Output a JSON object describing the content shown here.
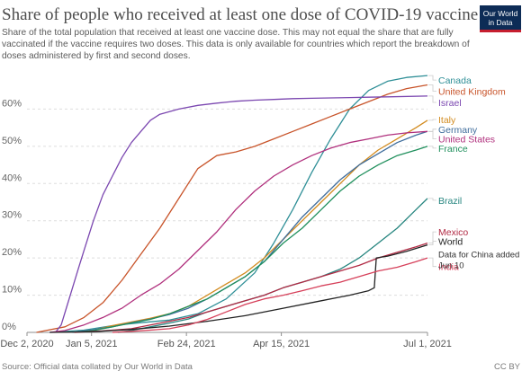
{
  "title": "Share of people who received at least one dose of COVID-19 vaccine",
  "subtitle": "Share of the total population that received at least one vaccine dose. This may not equal the share that are fully vaccinated if the vaccine requires two doses. This data is only available for countries which report the breakdown of doses administered by first and second doses.",
  "logo": {
    "line1": "Our World",
    "line2": "in Data"
  },
  "source": "Source: Official data collated by Our World in Data",
  "license": "CC BY",
  "chart_data": {
    "type": "line",
    "title": "Share of people who received at least one dose of COVID-19 vaccine",
    "xlabel": "",
    "ylabel": "",
    "x_ticks": [
      {
        "value": 0,
        "label": "Dec 2, 2020"
      },
      {
        "value": 34,
        "label": "Jan 5, 2021"
      },
      {
        "value": 84,
        "label": "Feb 24, 2021"
      },
      {
        "value": 134,
        "label": "Apr 15, 2021"
      },
      {
        "value": 211,
        "label": "Jul 1, 2021"
      }
    ],
    "y_ticks": [
      {
        "value": 0,
        "label": "0%"
      },
      {
        "value": 10,
        "label": "10%"
      },
      {
        "value": 20,
        "label": "20%"
      },
      {
        "value": 30,
        "label": "30%"
      },
      {
        "value": 40,
        "label": "40%"
      },
      {
        "value": 50,
        "label": "50%"
      },
      {
        "value": 60,
        "label": "60%"
      }
    ],
    "xlim": [
      0,
      211
    ],
    "ylim": [
      0,
      70
    ],
    "grid": "horizontal",
    "series": [
      {
        "name": "Canada",
        "color": "#2f8f97",
        "label_y": 67.8,
        "points": [
          [
            12,
            0
          ],
          [
            30,
            0.6
          ],
          [
            45,
            1.8
          ],
          [
            60,
            2.6
          ],
          [
            75,
            3.3
          ],
          [
            90,
            5
          ],
          [
            105,
            9
          ],
          [
            120,
            16
          ],
          [
            130,
            24
          ],
          [
            140,
            33
          ],
          [
            150,
            43
          ],
          [
            160,
            52
          ],
          [
            170,
            60
          ],
          [
            180,
            65
          ],
          [
            190,
            67.5
          ],
          [
            200,
            68.5
          ],
          [
            211,
            69
          ]
        ]
      },
      {
        "name": "United Kingdom",
        "color": "#c8542a",
        "label_y": 64.8,
        "points": [
          [
            5,
            0
          ],
          [
            20,
            1.5
          ],
          [
            30,
            4
          ],
          [
            40,
            8
          ],
          [
            50,
            14
          ],
          [
            60,
            21
          ],
          [
            70,
            28
          ],
          [
            80,
            36
          ],
          [
            90,
            44
          ],
          [
            100,
            47.5
          ],
          [
            110,
            48.5
          ],
          [
            120,
            50
          ],
          [
            130,
            52
          ],
          [
            140,
            54
          ],
          [
            150,
            56
          ],
          [
            160,
            58
          ],
          [
            170,
            60
          ],
          [
            180,
            62
          ],
          [
            190,
            64
          ],
          [
            200,
            65.5
          ],
          [
            211,
            66.5
          ]
        ]
      },
      {
        "name": "Israel",
        "color": "#7b47b0",
        "label_y": 61.8,
        "points": [
          [
            15,
            0
          ],
          [
            18,
            2
          ],
          [
            21,
            7
          ],
          [
            24,
            12
          ],
          [
            27,
            17
          ],
          [
            30,
            22
          ],
          [
            35,
            30
          ],
          [
            40,
            37
          ],
          [
            45,
            42
          ],
          [
            50,
            47
          ],
          [
            55,
            51
          ],
          [
            60,
            54
          ],
          [
            65,
            57
          ],
          [
            70,
            58.6
          ],
          [
            80,
            60
          ],
          [
            90,
            61
          ],
          [
            100,
            61.6
          ],
          [
            110,
            62.1
          ],
          [
            120,
            62.4
          ],
          [
            130,
            62.6
          ],
          [
            140,
            62.8
          ],
          [
            150,
            62.9
          ],
          [
            160,
            63
          ],
          [
            170,
            63.1
          ],
          [
            180,
            63.2
          ],
          [
            190,
            63.3
          ],
          [
            211,
            63.5
          ]
        ]
      },
      {
        "name": "Italy",
        "color": "#d28b1f",
        "label_y": 57.2,
        "points": [
          [
            25,
            0
          ],
          [
            35,
            0.6
          ],
          [
            45,
            1.8
          ],
          [
            55,
            2.8
          ],
          [
            65,
            3.8
          ],
          [
            75,
            5
          ],
          [
            85,
            7
          ],
          [
            95,
            10
          ],
          [
            105,
            13
          ],
          [
            115,
            16
          ],
          [
            125,
            20
          ],
          [
            135,
            25
          ],
          [
            145,
            30
          ],
          [
            155,
            35
          ],
          [
            165,
            40
          ],
          [
            175,
            45
          ],
          [
            185,
            49
          ],
          [
            195,
            52
          ],
          [
            205,
            55
          ],
          [
            211,
            57
          ]
        ]
      },
      {
        "name": "Germany",
        "color": "#3f6d9c",
        "label_y": 54.6,
        "points": [
          [
            24,
            0
          ],
          [
            35,
            0.7
          ],
          [
            45,
            1.5
          ],
          [
            55,
            2.6
          ],
          [
            65,
            3.6
          ],
          [
            75,
            4.8
          ],
          [
            85,
            6.5
          ],
          [
            95,
            9
          ],
          [
            105,
            12
          ],
          [
            115,
            15
          ],
          [
            125,
            19
          ],
          [
            135,
            25
          ],
          [
            145,
            31
          ],
          [
            155,
            36
          ],
          [
            165,
            41
          ],
          [
            175,
            45
          ],
          [
            185,
            48
          ],
          [
            195,
            51
          ],
          [
            205,
            53
          ],
          [
            211,
            54
          ]
        ]
      },
      {
        "name": "United States",
        "color": "#b0307d",
        "label_y": 52.0,
        "points": [
          [
            12,
            0
          ],
          [
            20,
            0.5
          ],
          [
            30,
            2
          ],
          [
            40,
            4
          ],
          [
            50,
            6.5
          ],
          [
            60,
            10
          ],
          [
            70,
            13
          ],
          [
            80,
            17
          ],
          [
            90,
            22
          ],
          [
            100,
            27
          ],
          [
            110,
            33
          ],
          [
            120,
            38
          ],
          [
            130,
            42
          ],
          [
            140,
            45
          ],
          [
            150,
            47.5
          ],
          [
            160,
            49.5
          ],
          [
            170,
            51
          ],
          [
            180,
            52
          ],
          [
            190,
            53
          ],
          [
            200,
            53.6
          ],
          [
            211,
            54
          ]
        ]
      },
      {
        "name": "France",
        "color": "#1f8f5c",
        "label_y": 49.5,
        "points": [
          [
            26,
            0
          ],
          [
            35,
            0.5
          ],
          [
            45,
            1.5
          ],
          [
            55,
            2.5
          ],
          [
            65,
            3.5
          ],
          [
            75,
            5
          ],
          [
            85,
            7
          ],
          [
            95,
            9
          ],
          [
            105,
            12
          ],
          [
            115,
            15
          ],
          [
            125,
            19
          ],
          [
            135,
            24
          ],
          [
            145,
            28
          ],
          [
            155,
            33
          ],
          [
            165,
            38
          ],
          [
            175,
            42
          ],
          [
            185,
            45
          ],
          [
            195,
            47.5
          ],
          [
            205,
            49
          ],
          [
            211,
            50
          ]
        ]
      },
      {
        "name": "Brazil",
        "color": "#26857f",
        "label_y": 35.5,
        "points": [
          [
            48,
            0
          ],
          [
            55,
            0.5
          ],
          [
            65,
            1.5
          ],
          [
            75,
            2.5
          ],
          [
            85,
            3.6
          ],
          [
            95,
            5.5
          ],
          [
            105,
            7
          ],
          [
            115,
            8.5
          ],
          [
            125,
            10
          ],
          [
            135,
            12
          ],
          [
            145,
            13.5
          ],
          [
            155,
            15
          ],
          [
            165,
            17
          ],
          [
            175,
            20
          ],
          [
            185,
            24
          ],
          [
            195,
            28
          ],
          [
            205,
            33
          ],
          [
            211,
            36
          ]
        ]
      },
      {
        "name": "Mexico",
        "color": "#b12a44",
        "label_y": 27.0,
        "points": [
          [
            25,
            0
          ],
          [
            40,
            0.4
          ],
          [
            55,
            1
          ],
          [
            65,
            2
          ],
          [
            75,
            3
          ],
          [
            85,
            4
          ],
          [
            95,
            5.5
          ],
          [
            105,
            7
          ],
          [
            115,
            8.5
          ],
          [
            125,
            10
          ],
          [
            135,
            12
          ],
          [
            145,
            13.5
          ],
          [
            155,
            15
          ],
          [
            165,
            16.5
          ],
          [
            175,
            18
          ],
          [
            185,
            20
          ],
          [
            195,
            21.5
          ],
          [
            205,
            23
          ],
          [
            211,
            24
          ]
        ]
      },
      {
        "name": "World",
        "color": "#222222",
        "label_y": 24.5,
        "points": [
          [
            12,
            0
          ],
          [
            35,
            0.2
          ],
          [
            55,
            0.8
          ],
          [
            75,
            1.7
          ],
          [
            95,
            3
          ],
          [
            115,
            4.5
          ],
          [
            135,
            6.5
          ],
          [
            155,
            8.5
          ],
          [
            170,
            10
          ],
          [
            180,
            11.2
          ],
          [
            183,
            12
          ],
          [
            184,
            20
          ],
          [
            190,
            20.5
          ],
          [
            200,
            21.8
          ],
          [
            211,
            23.5
          ]
        ]
      },
      {
        "name": "India",
        "color": "#d6405a",
        "label_y": 17.7,
        "points": [
          [
            45,
            0
          ],
          [
            55,
            0.3
          ],
          [
            65,
            0.6
          ],
          [
            75,
            1
          ],
          [
            85,
            2
          ],
          [
            95,
            3.5
          ],
          [
            105,
            5.5
          ],
          [
            115,
            7.5
          ],
          [
            125,
            9
          ],
          [
            135,
            10
          ],
          [
            145,
            11.2
          ],
          [
            155,
            12.5
          ],
          [
            165,
            13.5
          ],
          [
            175,
            15
          ],
          [
            185,
            16.5
          ],
          [
            195,
            17.5
          ],
          [
            205,
            19
          ],
          [
            211,
            20
          ]
        ]
      }
    ],
    "annotation": "Data for China added on Jun 10"
  }
}
